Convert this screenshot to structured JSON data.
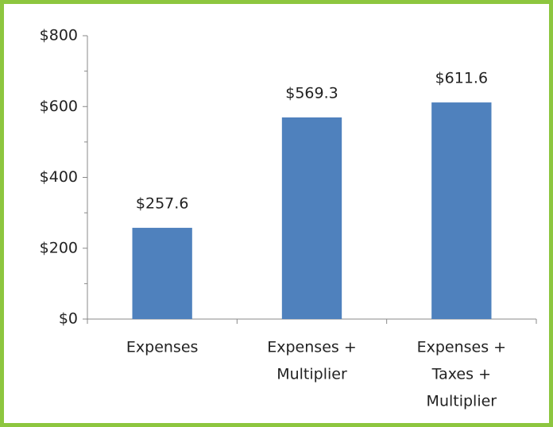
{
  "chart_data": {
    "type": "bar",
    "categories": [
      [
        "Expenses"
      ],
      [
        "Expenses +",
        "Multiplier"
      ],
      [
        "Expenses +",
        "Taxes +",
        "Multiplier"
      ]
    ],
    "values": [
      257.6,
      569.3,
      611.6
    ],
    "value_labels": [
      "$257.6",
      "$569.3",
      "$611.6"
    ],
    "color": "#4f81bd",
    "ylim": [
      0,
      800
    ],
    "yticks": [
      {
        "value": 0,
        "label": "$0"
      },
      {
        "value": 200,
        "label": "$200"
      },
      {
        "value": 400,
        "label": "$400"
      },
      {
        "value": 600,
        "label": "$600"
      },
      {
        "value": 800,
        "label": "$800"
      }
    ],
    "yticks_minor": [
      100,
      300,
      500,
      700
    ],
    "grid": false
  }
}
